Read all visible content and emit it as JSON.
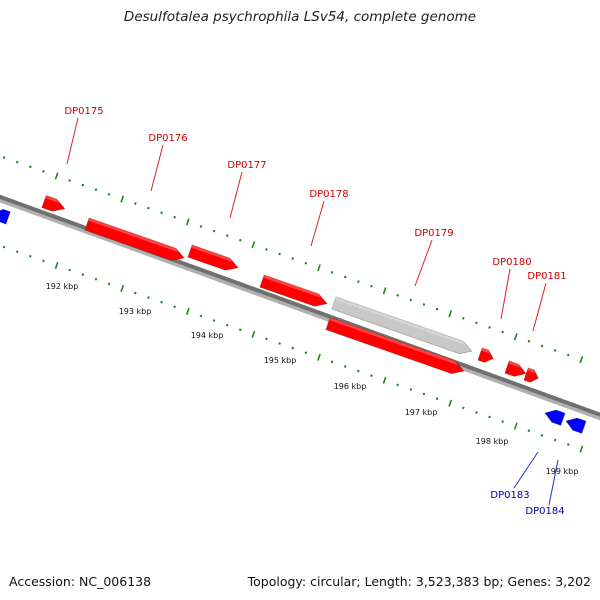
{
  "title": "Desulfotalea psychrophila LSv54, complete genome",
  "footer": {
    "accession": "Accession: NC_006138",
    "summary": "Topology: circular; Length: 3,523,383 bp; Genes: 3,202"
  },
  "colors": {
    "forward_gene": "#ff0000",
    "reverse_gene": "#0000ff",
    "selected_gene": "#c8c8c8",
    "tick": "#1a8a1a",
    "backbone": "#707070",
    "forward_label": "#cc0000",
    "reverse_label": "#0000aa"
  },
  "scale_labels": [
    "192 kbp",
    "193 kbp",
    "194 kbp",
    "195 kbp",
    "196 kbp",
    "197 kbp",
    "198 kbp",
    "199 kbp"
  ],
  "genes": [
    {
      "id": "DP0175",
      "strand": "+"
    },
    {
      "id": "DP0176",
      "strand": "+"
    },
    {
      "id": "DP0177",
      "strand": "+"
    },
    {
      "id": "DP0178",
      "strand": "+"
    },
    {
      "id": "DP0179",
      "strand": "+",
      "selected": true
    },
    {
      "id": "DP0180",
      "strand": "+"
    },
    {
      "id": "DP0181",
      "strand": "+"
    },
    {
      "id": "DP0183",
      "strand": "-"
    },
    {
      "id": "DP0184",
      "strand": "-"
    }
  ]
}
